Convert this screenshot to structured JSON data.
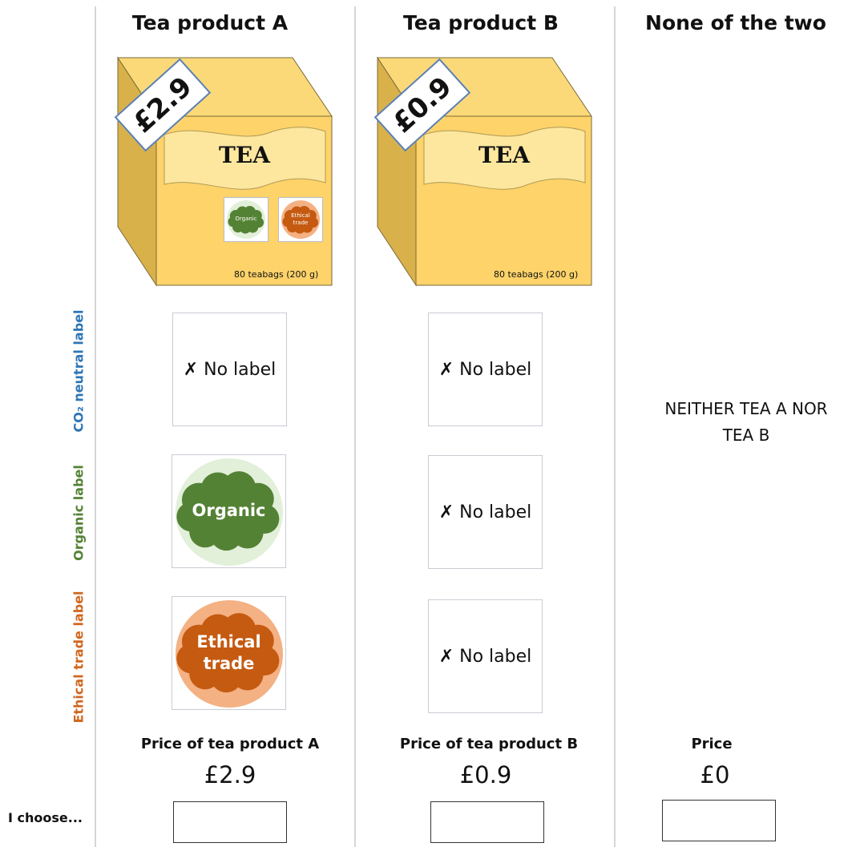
{
  "row_labels": [
    "CO₂ neutral label",
    "Organic label",
    "Ethical trade label"
  ],
  "choose_label": "I choose...",
  "columns": [
    {
      "header": "Tea product A",
      "box": {
        "price_tag": "£2.9",
        "name": "TEA",
        "badges": [
          "Organic",
          "Ethical trade"
        ],
        "size": "80 teabags (200 g)"
      },
      "labels": [
        "✗ No label",
        "Organic",
        "Ethical trade"
      ],
      "price_caption": "Price of tea product A",
      "price": "£2.9"
    },
    {
      "header": "Tea product B",
      "box": {
        "price_tag": "£0.9",
        "name": "TEA",
        "size": "80 teabags (200 g)"
      },
      "labels": [
        "✗ No label",
        "✗ No label",
        "✗ No label"
      ],
      "price_caption": "Price of tea product B",
      "price": "£0.9"
    },
    {
      "header": "None of the two",
      "text": "NEITHER TEA A NOR TEA B",
      "price_caption": "Price",
      "price": "£0"
    }
  ]
}
